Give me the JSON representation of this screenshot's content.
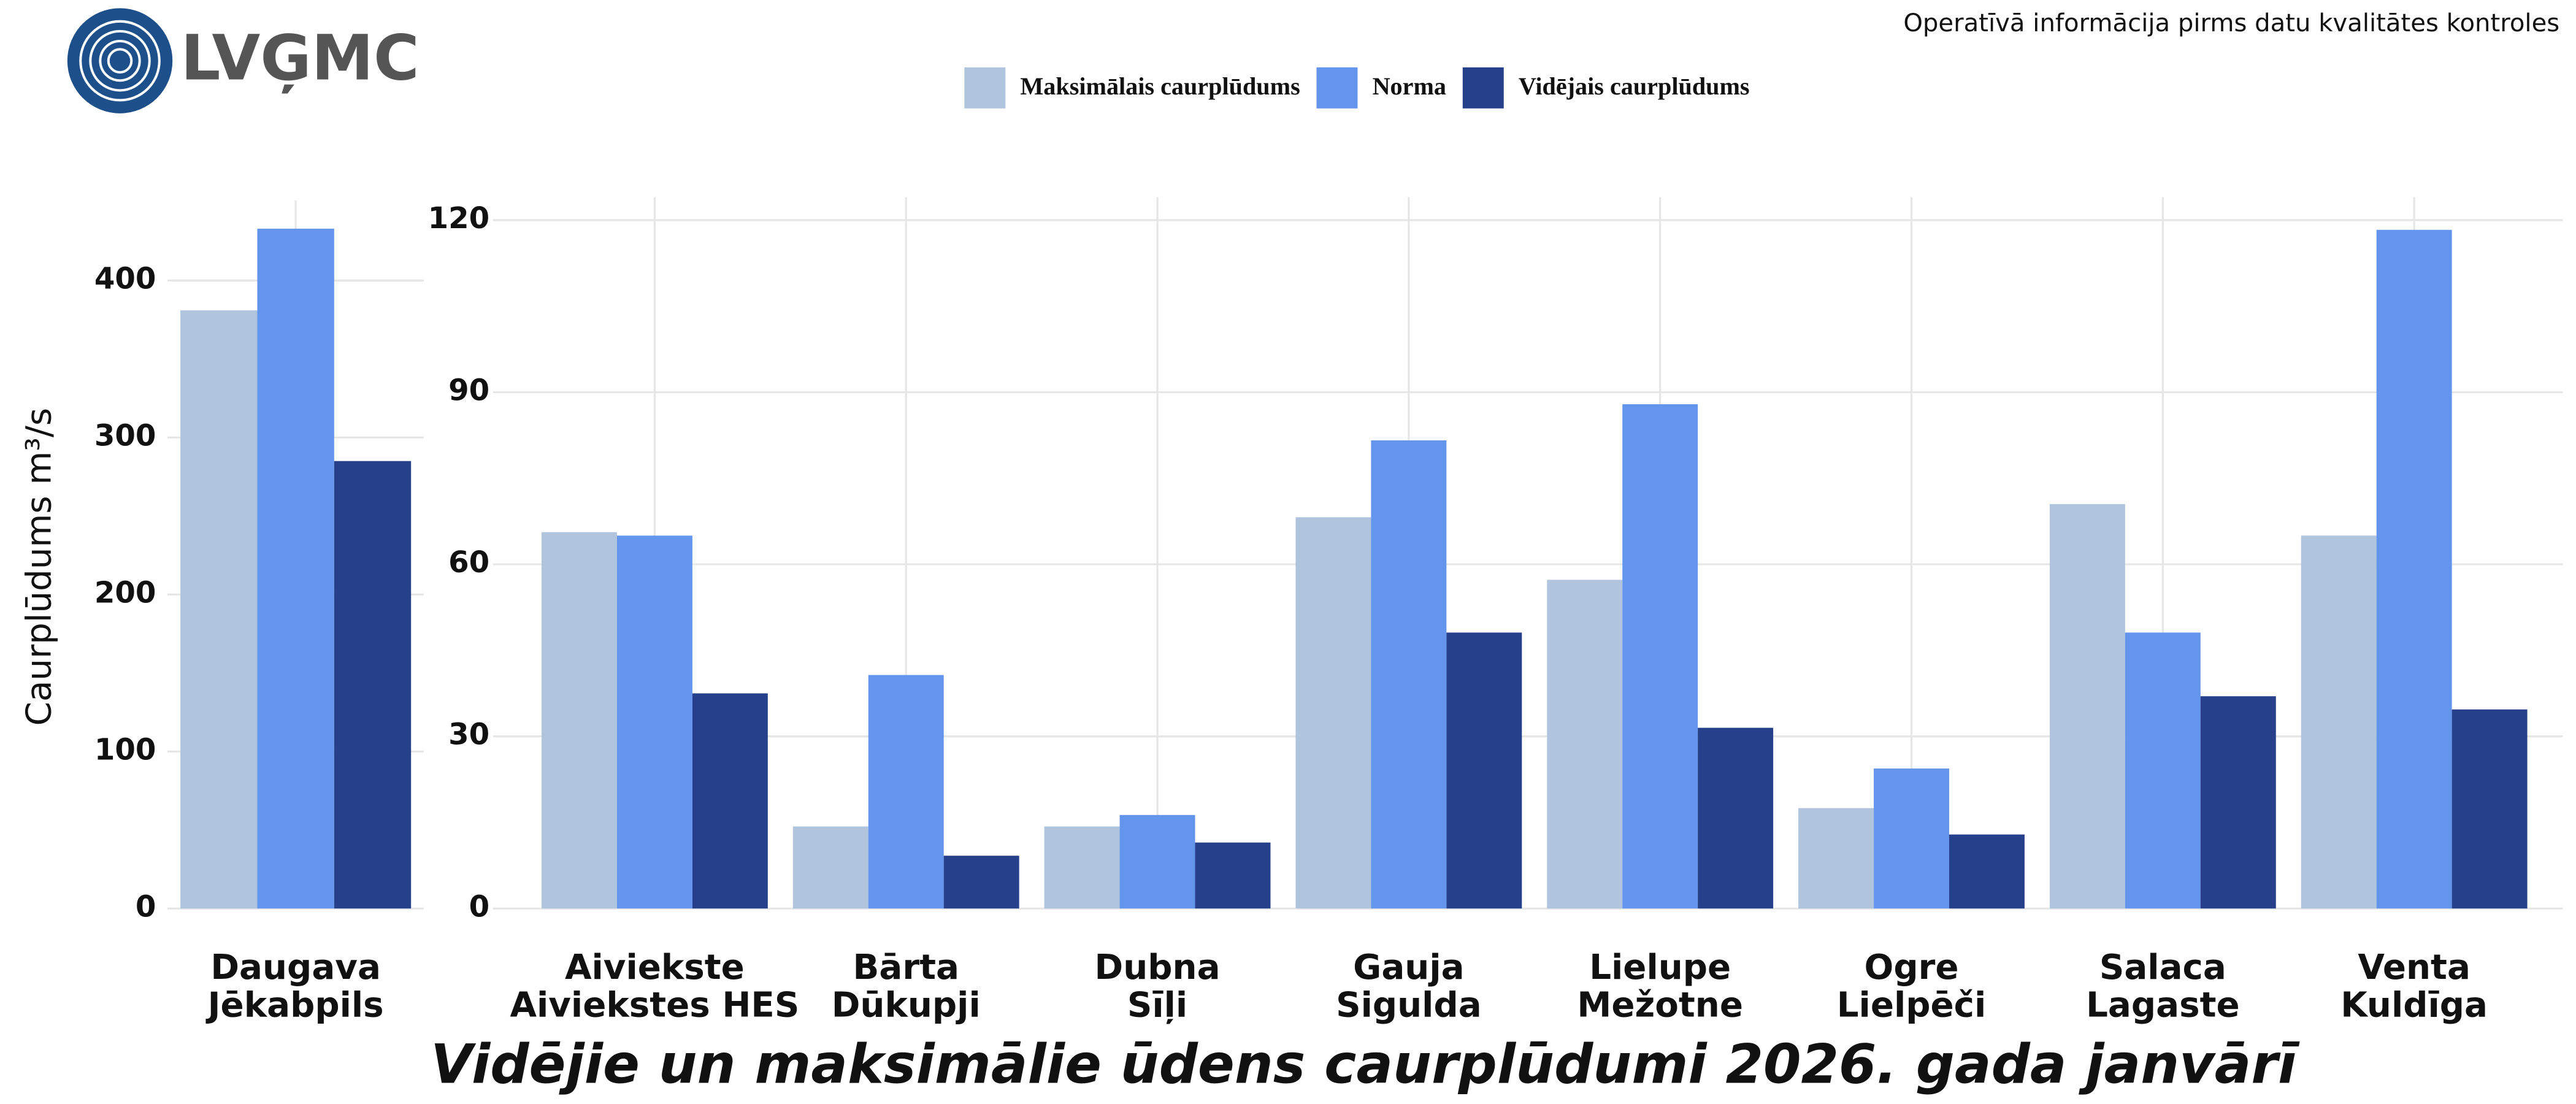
{
  "logo": "LVĢMC",
  "note": "Operatīvā informācija pirms datu kvalitātes kontroles",
  "title": "Vidējie un maksimālie ūdens caurplūdumi 2026. gada janvārī",
  "y_label": "Caurplūdums   m³/s",
  "chart_data": [
    {
      "type": "bar",
      "grid": true,
      "categories": [
        [
          "Daugava",
          "Jēkabpils"
        ]
      ],
      "ylim": [
        0,
        451
      ],
      "yticks": [
        0,
        100,
        200,
        300,
        400
      ],
      "series": [
        {
          "name": "Maksimālais caurplūdums",
          "color": "#b0c4de",
          "values": [
            381
          ]
        },
        {
          "name": "Norma",
          "color": "#6495ed",
          "values": [
            433
          ]
        },
        {
          "name": "Vidējais caurplūdums",
          "color": "#27408b",
          "values": [
            285
          ]
        }
      ]
    },
    {
      "type": "bar",
      "grid": true,
      "categories": [
        [
          "Aiviekste",
          "Aiviekstes HES"
        ],
        [
          "Bārta",
          "Dūkupji"
        ],
        [
          "Dubna",
          "Sīļi"
        ],
        [
          "Gauja",
          "Sigulda"
        ],
        [
          "Lielupe",
          "Mežotne"
        ],
        [
          "Ogre",
          "Lielpēči"
        ],
        [
          "Salaca",
          "Lagaste"
        ],
        [
          "Venta",
          "Kuldīga"
        ]
      ],
      "ylim": [
        0,
        124
      ],
      "yticks": [
        0,
        30,
        60,
        90,
        120
      ],
      "series": [
        {
          "color": "#b0c4de",
          "values": [
            65.6,
            14.3,
            14.3,
            68.2,
            57.3,
            17.5,
            70.5,
            65.0
          ]
        },
        {
          "color": "#6495ed",
          "values": [
            65.0,
            40.7,
            16.3,
            81.6,
            87.9,
            24.4,
            48.1,
            118.3
          ]
        },
        {
          "color": "#27408b",
          "values": [
            37.5,
            9.2,
            11.5,
            48.1,
            31.5,
            12.9,
            37.0,
            34.7
          ]
        }
      ]
    }
  ]
}
